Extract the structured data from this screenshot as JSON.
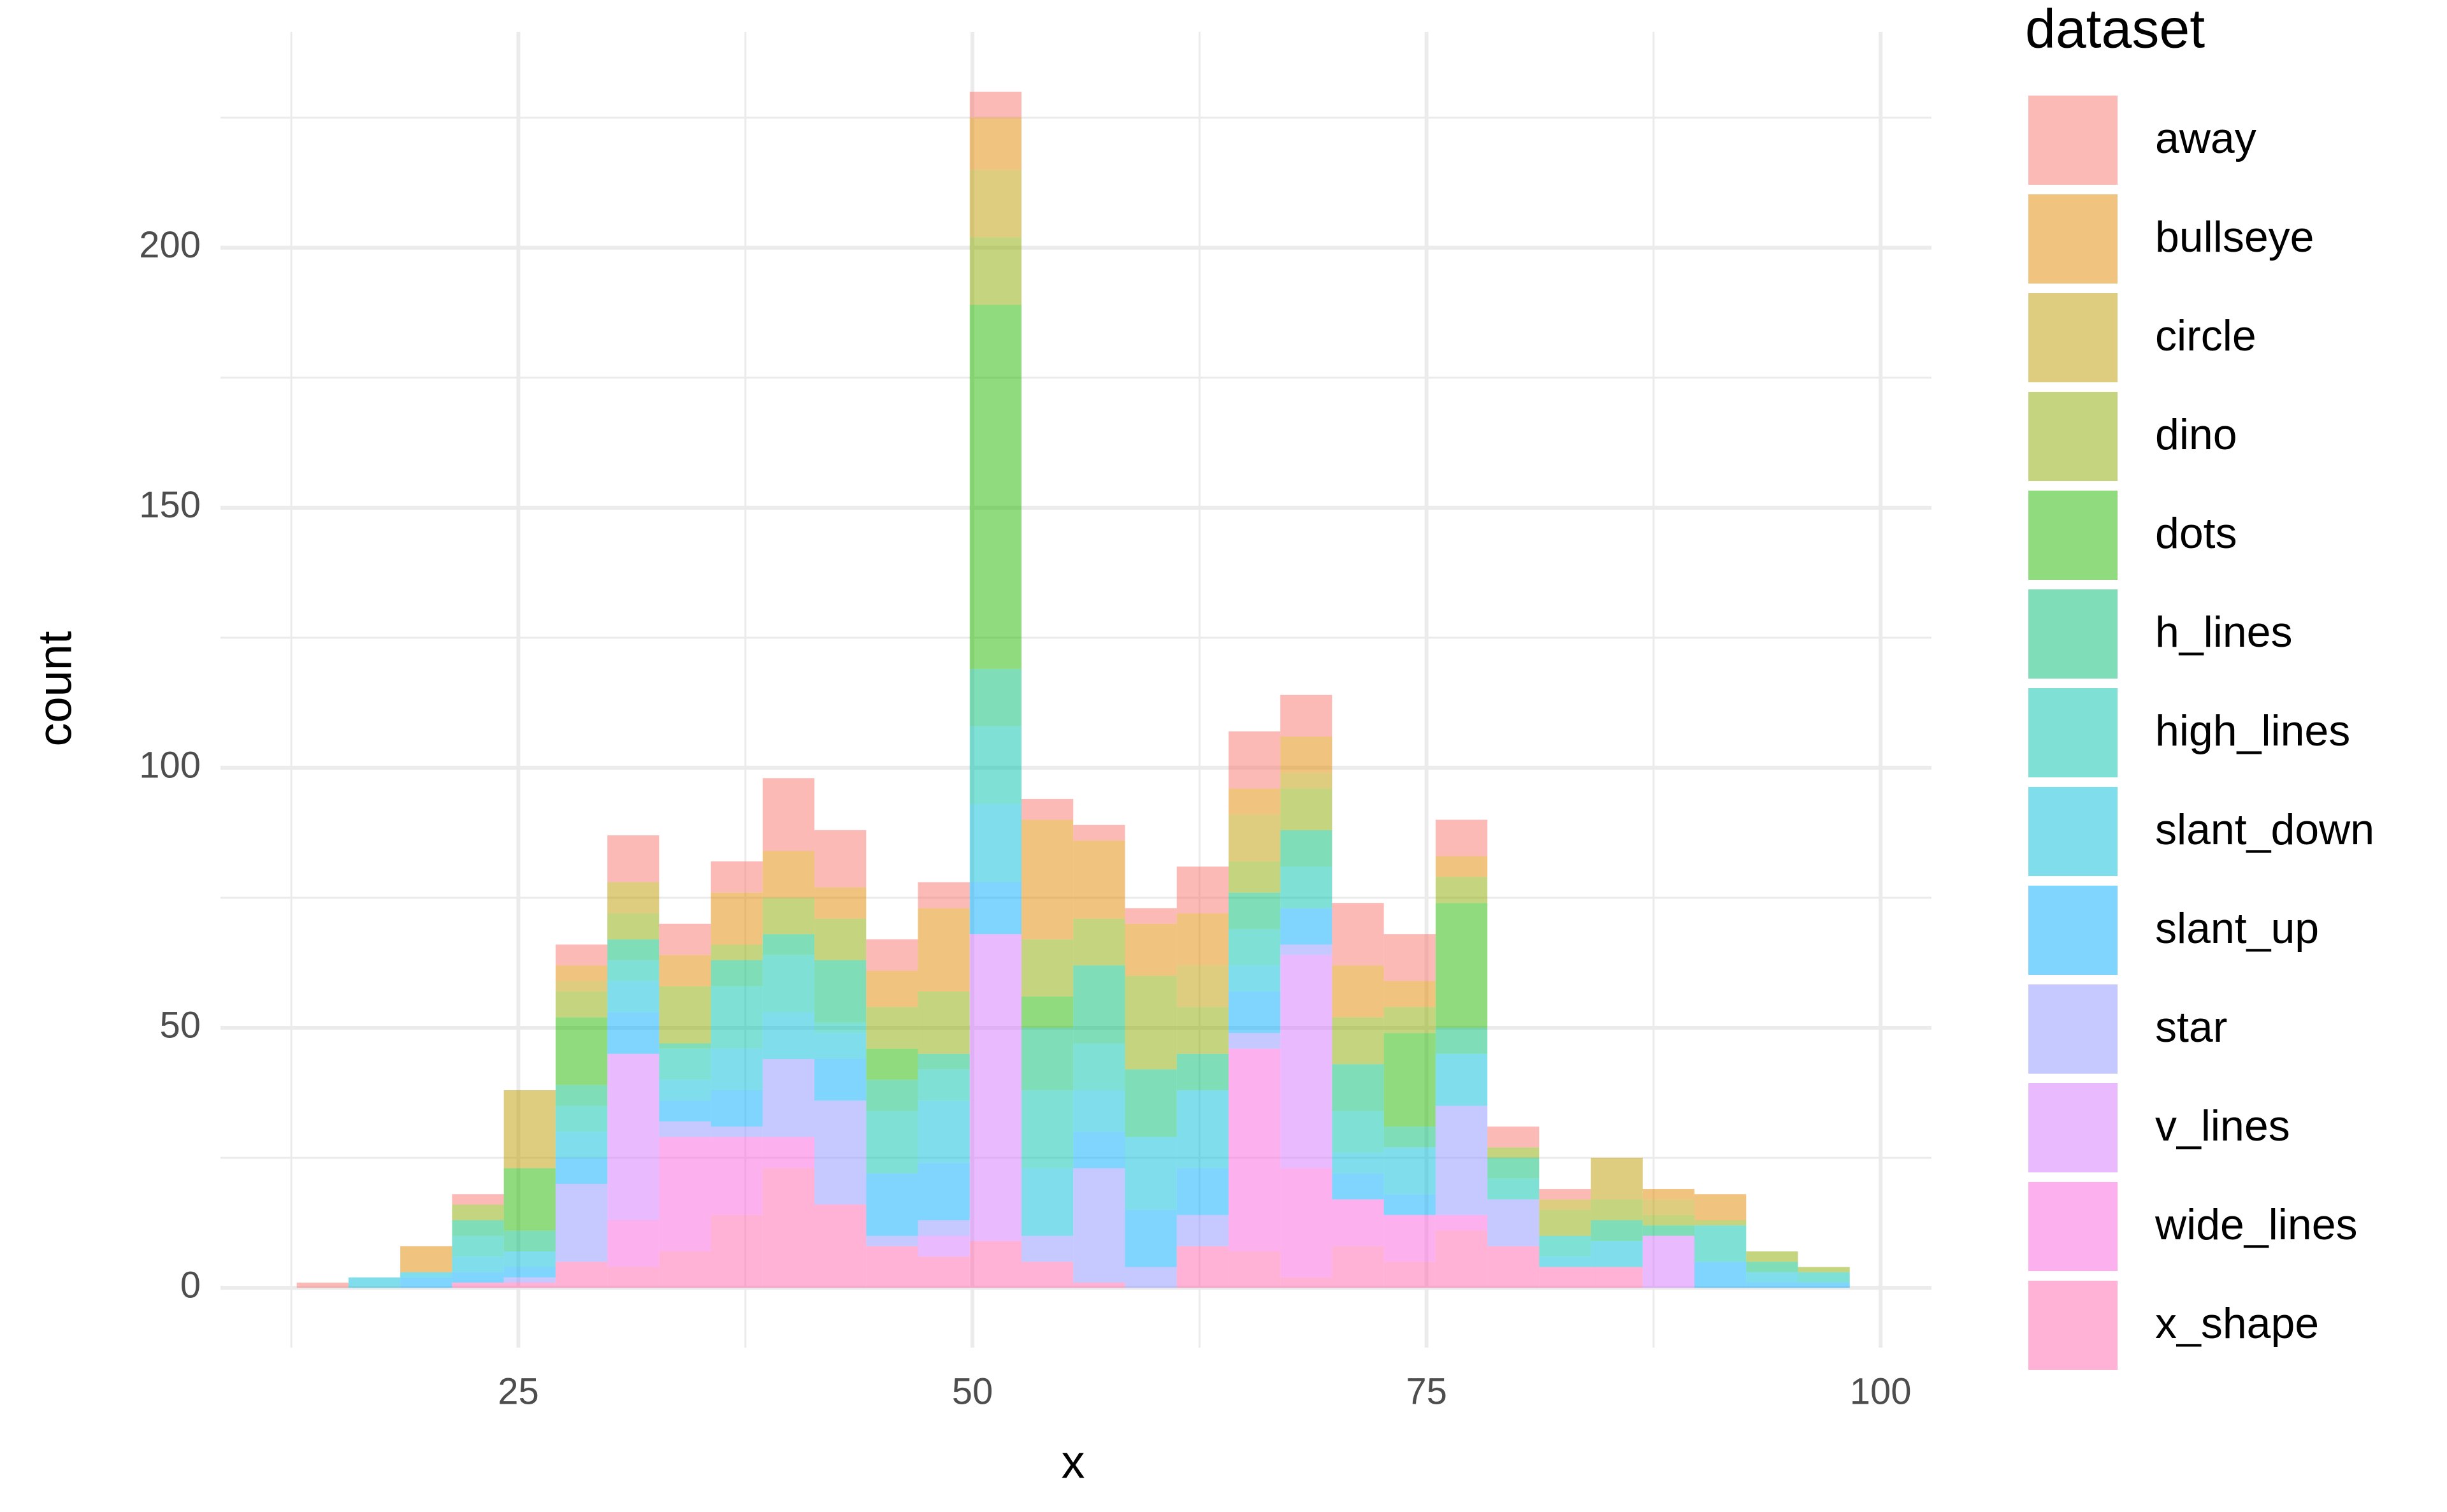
{
  "chart_data": {
    "type": "histogram",
    "xlabel": "x",
    "ylabel": "count",
    "legend_title": "dataset",
    "bins": [
      12.8,
      15.65,
      18.5,
      21.35,
      24.2,
      27.05,
      29.9,
      32.75,
      35.6,
      38.45,
      41.3,
      44.15,
      47.0,
      49.85,
      52.7,
      55.55,
      58.4,
      61.25,
      64.1,
      66.95,
      69.8,
      72.65,
      75.5,
      78.35,
      81.2,
      84.05,
      86.9,
      89.75,
      92.6,
      95.45,
      98.3
    ],
    "series": [
      {
        "name": "away",
        "color": "#F8766D",
        "values": [
          1,
          0,
          0,
          2,
          0,
          4,
          9,
          6,
          6,
          14,
          11,
          6,
          5,
          5,
          4,
          3,
          3,
          9,
          11,
          8,
          12,
          9,
          7,
          4,
          2,
          0,
          0,
          0,
          0,
          0
        ]
      },
      {
        "name": "bullseye",
        "color": "#E18A00",
        "values": [
          0,
          0,
          5,
          0,
          0,
          3,
          0,
          6,
          10,
          9,
          6,
          7,
          16,
          10,
          23,
          15,
          10,
          10,
          5,
          7,
          10,
          5,
          4,
          0,
          0,
          0,
          2,
          5,
          0,
          0
        ]
      },
      {
        "name": "circle",
        "color": "#BE9C00",
        "values": [
          0,
          0,
          0,
          0,
          15,
          2,
          6,
          0,
          0,
          0,
          0,
          0,
          0,
          13,
          0,
          0,
          0,
          8,
          9,
          3,
          0,
          0,
          0,
          0,
          2,
          8,
          3,
          0,
          0,
          0
        ]
      },
      {
        "name": "dino",
        "color": "#8CAB00",
        "values": [
          0,
          0,
          0,
          3,
          0,
          5,
          5,
          11,
          3,
          7,
          8,
          8,
          12,
          13,
          11,
          9,
          18,
          9,
          6,
          8,
          9,
          5,
          5,
          2,
          5,
          4,
          2,
          1,
          2,
          1
        ]
      },
      {
        "name": "dots",
        "color": "#24B700",
        "values": [
          0,
          0,
          0,
          0,
          12,
          13,
          0,
          0,
          0,
          0,
          0,
          6,
          0,
          70,
          6,
          0,
          0,
          0,
          0,
          0,
          0,
          18,
          24,
          0,
          0,
          0,
          0,
          0,
          0,
          0
        ]
      },
      {
        "name": "h_lines",
        "color": "#00BE70",
        "values": [
          0,
          0,
          0,
          3,
          4,
          4,
          4,
          1,
          5,
          4,
          12,
          6,
          3,
          11,
          12,
          15,
          13,
          7,
          7,
          7,
          9,
          4,
          5,
          4,
          0,
          4,
          2,
          0,
          2,
          0
        ]
      },
      {
        "name": "high_lines",
        "color": "#00C1AB",
        "values": [
          0,
          0,
          0,
          4,
          0,
          5,
          4,
          6,
          12,
          11,
          2,
          12,
          6,
          15,
          15,
          9,
          0,
          0,
          7,
          8,
          8,
          0,
          0,
          4,
          4,
          0,
          0,
          7,
          0,
          2
        ]
      },
      {
        "name": "slant_down",
        "color": "#00BBDA",
        "values": [
          0,
          2,
          1,
          3,
          3,
          5,
          6,
          4,
          8,
          9,
          5,
          0,
          12,
          15,
          13,
          8,
          14,
          15,
          5,
          0,
          4,
          9,
          10,
          0,
          2,
          5,
          0,
          0,
          2,
          0
        ]
      },
      {
        "name": "slant_up",
        "color": "#00ACFC",
        "values": [
          0,
          0,
          2,
          2,
          2,
          5,
          8,
          4,
          7,
          0,
          8,
          12,
          11,
          10,
          0,
          7,
          11,
          9,
          8,
          7,
          5,
          4,
          0,
          0,
          0,
          0,
          0,
          5,
          1,
          1
        ]
      },
      {
        "name": "star",
        "color": "#8B93FF",
        "values": [
          0,
          0,
          0,
          0,
          1,
          15,
          0,
          3,
          2,
          15,
          20,
          2,
          3,
          0,
          5,
          22,
          4,
          6,
          3,
          2,
          0,
          0,
          21,
          9,
          0,
          0,
          0,
          0,
          0,
          0
        ]
      },
      {
        "name": "v_lines",
        "color": "#D575FE",
        "values": [
          0,
          0,
          0,
          0,
          0,
          0,
          32,
          0,
          0,
          0,
          0,
          0,
          4,
          59,
          0,
          0,
          0,
          0,
          0,
          41,
          0,
          0,
          0,
          0,
          0,
          0,
          10,
          0,
          0,
          0
        ]
      },
      {
        "name": "wide_lines",
        "color": "#F962DD",
        "values": [
          0,
          0,
          0,
          0,
          0,
          0,
          9,
          22,
          15,
          6,
          0,
          0,
          0,
          0,
          0,
          0,
          0,
          0,
          39,
          21,
          9,
          9,
          3,
          0,
          0,
          0,
          0,
          0,
          0,
          0
        ]
      },
      {
        "name": "x_shape",
        "color": "#FF65AC",
        "values": [
          0,
          0,
          0,
          1,
          1,
          5,
          4,
          7,
          14,
          23,
          16,
          8,
          6,
          9,
          5,
          1,
          0,
          8,
          7,
          2,
          8,
          5,
          11,
          8,
          4,
          4,
          0,
          0,
          0,
          0
        ]
      }
    ],
    "xlim": [
      8.6,
      102.8
    ],
    "xticks": [
      25,
      50,
      75,
      100
    ],
    "ylim": [
      -11.5,
      241.5
    ],
    "yticks": [
      0,
      50,
      100,
      150,
      200
    ],
    "grid": true,
    "legend": "right"
  }
}
